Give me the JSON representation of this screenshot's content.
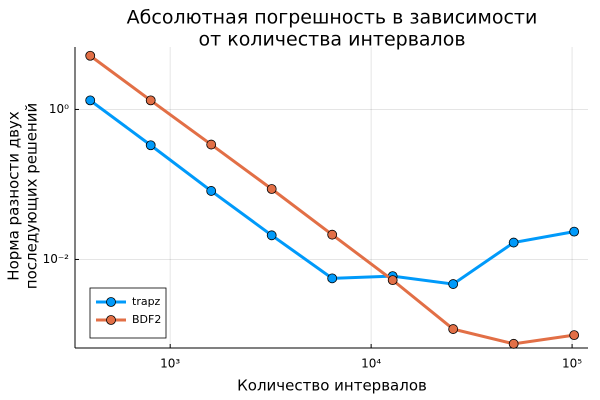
{
  "chart_data": {
    "type": "line",
    "title": [
      "Абсолютная погрешность в зависимости",
      "от количества интервалов"
    ],
    "xlabel": "Количество интервалов",
    "ylabel": [
      "Норма разности двух",
      "последующих решений"
    ],
    "x": [
      400,
      800,
      1600,
      3200,
      6400,
      12800,
      25600,
      51200,
      102400
    ],
    "series": [
      {
        "name": "trapz",
        "color": "#009afa",
        "values": [
          1.32,
          0.333,
          0.082,
          0.021,
          0.0056,
          0.006,
          0.0047,
          0.0168,
          0.0235
        ]
      },
      {
        "name": "BDF2",
        "color": "#e26f46",
        "values": [
          5.2,
          1.32,
          0.34,
          0.087,
          0.0214,
          0.0053,
          0.00118,
          0.00075,
          0.00098
        ]
      }
    ],
    "xscale": "log",
    "yscale": "log",
    "xlim": [
      336,
      120000
    ],
    "ylim": [
      0.00066,
      6.8
    ],
    "xticks": [
      {
        "value": 1000,
        "label": "10³"
      },
      {
        "value": 10000,
        "label": "10⁴"
      },
      {
        "value": 100000,
        "label": "10⁵"
      }
    ],
    "yticks": [
      {
        "value": 0.01,
        "label": "10⁻²"
      },
      {
        "value": 1,
        "label": "10⁰"
      }
    ],
    "grid": true,
    "legend": "lower left"
  }
}
